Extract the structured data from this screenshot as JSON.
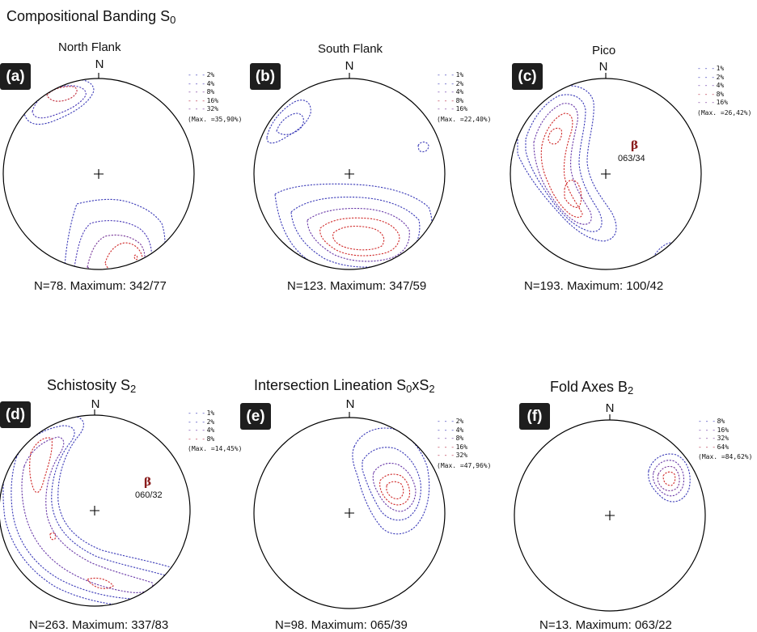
{
  "figure": {
    "section_titles": [
      {
        "text": "Compositional Banding S",
        "sub": "0"
      },
      {
        "text": "Schistosity S",
        "sub": "2"
      },
      {
        "text": "Intersection Lineation S",
        "sub": "0",
        "text2": "xS",
        "sub2": "2"
      },
      {
        "text": "Fold Axes B",
        "sub": "2"
      }
    ],
    "north_label": "N",
    "panels": [
      {
        "id": "a",
        "badge": "(a)",
        "subtitle": "North Flank",
        "caption": "N=78. Maximum: 342/77",
        "legend": [
          "2%",
          "4%",
          "8%",
          "16%",
          "32%"
        ],
        "legend_colors": [
          "#3b3bb8",
          "#4b3bb8",
          "#7a3a9a",
          "#b8304a",
          "#7a3a9a"
        ],
        "max": "(Max. =35,90%)"
      },
      {
        "id": "b",
        "badge": "(b)",
        "subtitle": "South Flank",
        "caption": "N=123. Maximum: 347/59",
        "legend": [
          "1%",
          "2%",
          "4%",
          "8%",
          "16%"
        ],
        "legend_colors": [
          "#3b3bb8",
          "#3b3bb8",
          "#6a3aa8",
          "#b8304a",
          "#7a3a9a"
        ],
        "max": "(Max. =22,40%)"
      },
      {
        "id": "c",
        "badge": "(c)",
        "subtitle": "Pico",
        "caption": "N=193. Maximum: 100/42",
        "legend": [
          "1%",
          "2%",
          "4%",
          "8%",
          "16%"
        ],
        "legend_colors": [
          "#3b3bb8",
          "#3b3bb8",
          "#6a3aa8",
          "#b8304a",
          "#7a3a9a"
        ],
        "max": "(Max. =26,42%)",
        "beta": "β",
        "beta_value": "063/34"
      },
      {
        "id": "d",
        "badge": "(d)",
        "caption": "N=263. Maximum: 337/83",
        "legend": [
          "1%",
          "2%",
          "4%",
          "8%"
        ],
        "legend_colors": [
          "#3b3bb8",
          "#3b3bb8",
          "#6a3aa8",
          "#b8304a"
        ],
        "max": "(Max. =14,45%)",
        "beta": "β",
        "beta_value": "060/32"
      },
      {
        "id": "e",
        "badge": "(e)",
        "caption": "N=98. Maximum: 065/39",
        "legend": [
          "2%",
          "4%",
          "8%",
          "16%",
          "32%"
        ],
        "legend_colors": [
          "#3b3bb8",
          "#3b3bb8",
          "#6a3aa8",
          "#b8304a",
          "#b8304a"
        ],
        "max": "(Max. =47,96%)"
      },
      {
        "id": "f",
        "badge": "(f)",
        "caption": "N=13. Maximum: 063/22",
        "legend": [
          "8%",
          "16%",
          "32%",
          "64%"
        ],
        "legend_colors": [
          "#3b3bb8",
          "#6a3aa8",
          "#7a3a9a",
          "#b8304a"
        ],
        "max": "(Max. =84,62%)"
      }
    ],
    "colors": {
      "blue": "#3b3bb8",
      "purple": "#7a3a9a",
      "red": "#d02a2a",
      "circle": "#000000"
    }
  }
}
